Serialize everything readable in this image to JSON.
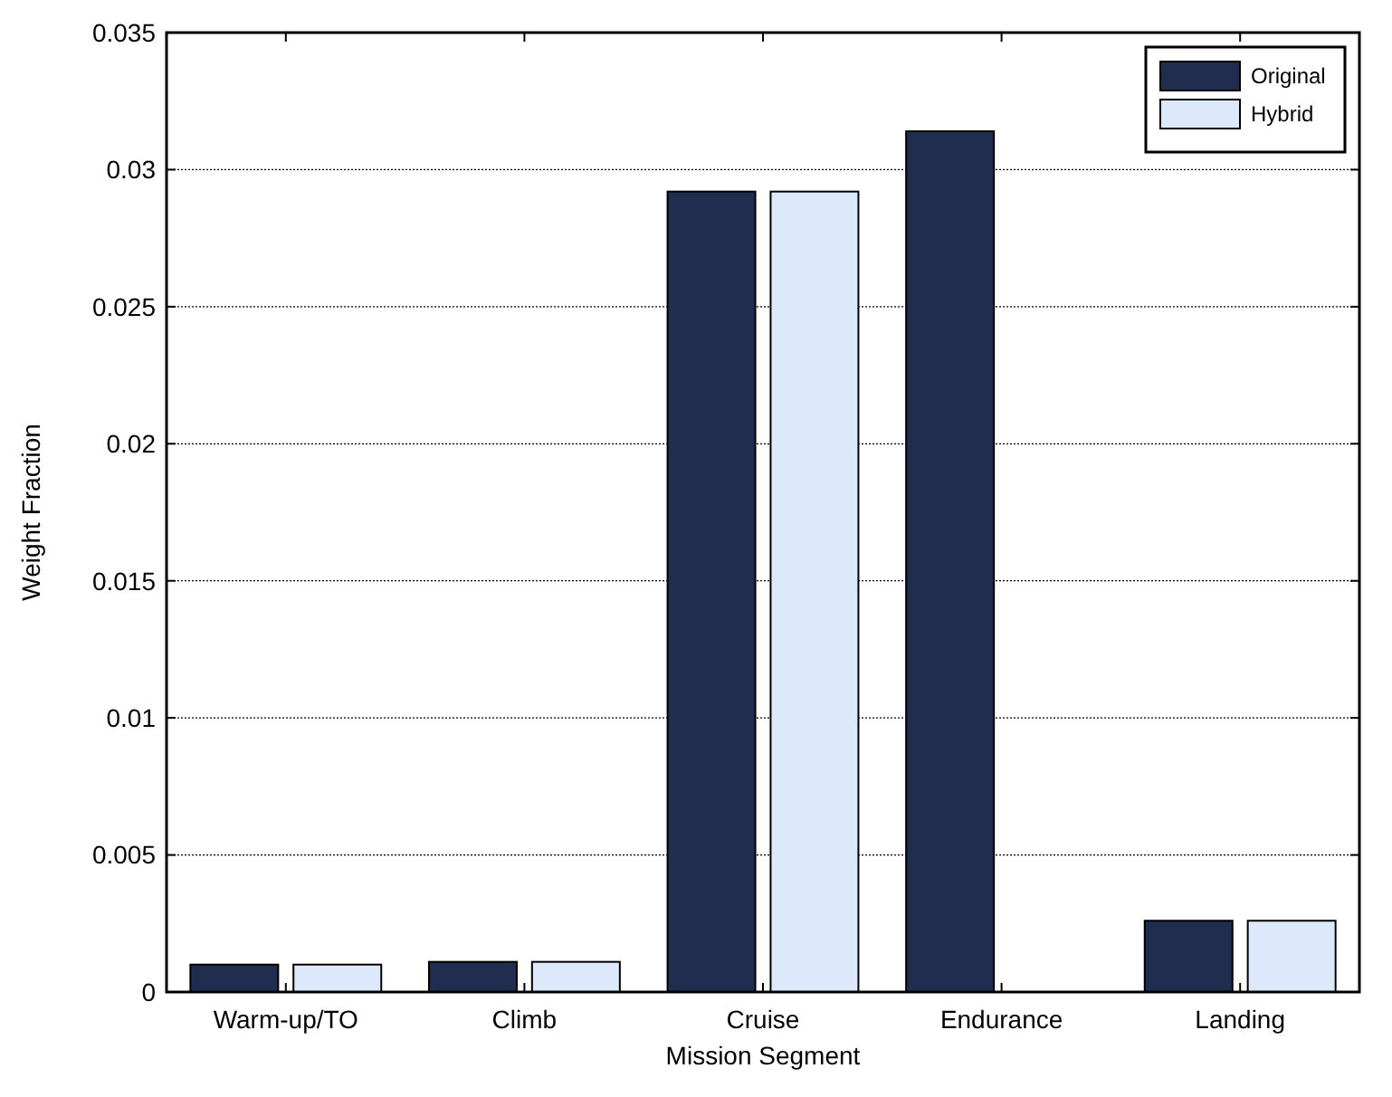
{
  "chart_data": {
    "type": "bar",
    "xlabel": "Mission Segment",
    "ylabel": "Weight Fraction",
    "categories": [
      "Warm-up/TO",
      "Climb",
      "Cruise",
      "Endurance",
      "Landing"
    ],
    "series": [
      {
        "name": "Original",
        "color": "#1f2d4f",
        "values": [
          0.001,
          0.0011,
          0.0292,
          0.0314,
          0.0026
        ]
      },
      {
        "name": "Hybrid",
        "color": "#dce9fb",
        "values": [
          0.001,
          0.0011,
          0.0292,
          0,
          0.0026
        ]
      }
    ],
    "ylim": [
      0,
      0.035
    ],
    "yticks": [
      0,
      0.005,
      0.01,
      0.015,
      0.02,
      0.025,
      0.03,
      0.035
    ],
    "grid": "y",
    "legend": "top right"
  }
}
